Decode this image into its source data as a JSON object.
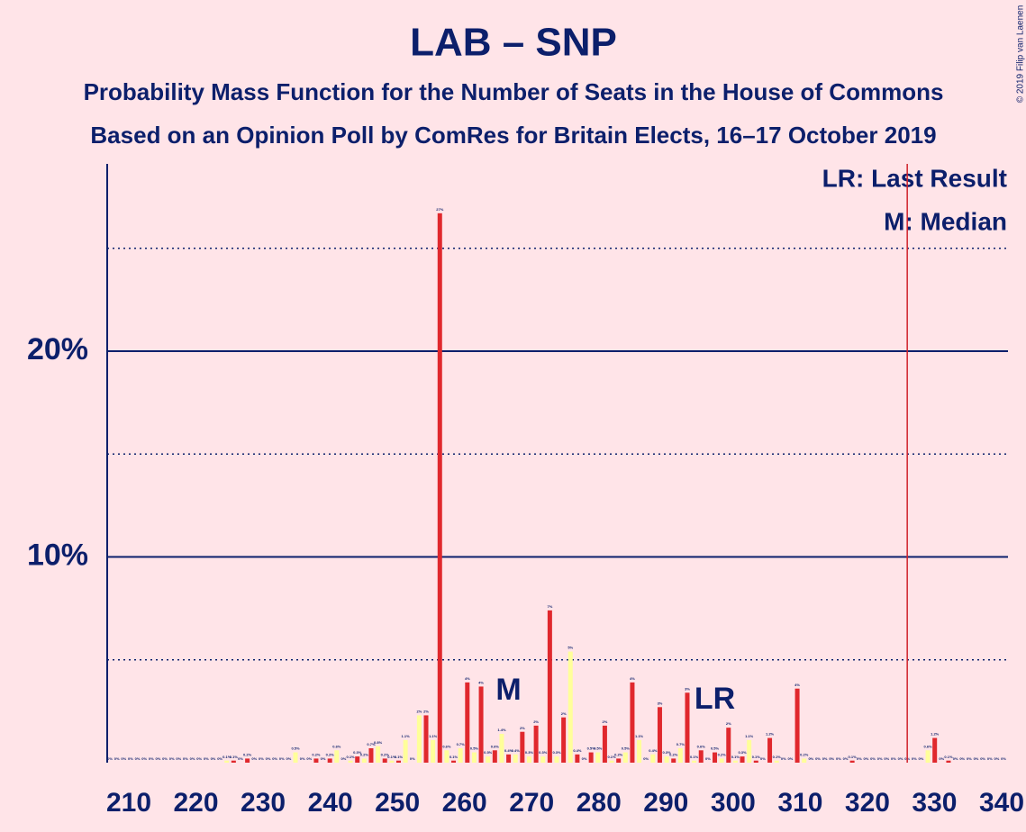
{
  "chart_data": {
    "type": "bar",
    "title": "LAB – SNP",
    "subtitle": "Probability Mass Function for the Number of Seats in the House of Commons",
    "subtitle2": "Based on an Opinion Poll by ComRes for Britain Elects, 16–17 October 2019",
    "copyright": "© 2019 Filip van Laenen",
    "legend": [
      "LR: Last Result",
      "M: Median"
    ],
    "colors": [
      "#e0282d",
      "#ffff9a"
    ],
    "x": [
      210,
      211,
      212,
      213,
      214,
      215,
      216,
      217,
      218,
      219,
      220,
      221,
      222,
      223,
      224,
      225,
      226,
      227,
      228,
      229,
      230,
      231,
      232,
      233,
      234,
      235,
      236,
      237,
      238,
      239,
      240,
      241,
      242,
      243,
      244,
      245,
      246,
      247,
      248,
      249,
      250,
      251,
      252,
      253,
      254,
      255,
      256,
      257,
      258,
      259,
      260,
      261,
      262,
      263,
      264,
      265,
      266,
      267,
      268,
      269,
      270,
      271,
      272,
      273,
      274,
      275,
      276,
      277,
      278,
      279,
      280,
      281,
      282,
      283,
      284,
      285,
      286,
      287,
      288,
      289,
      290,
      291,
      292,
      293,
      294,
      295,
      296,
      297,
      298,
      299,
      300,
      301,
      302,
      303,
      304,
      305,
      306,
      307,
      308,
      309,
      310,
      311,
      312,
      313,
      314,
      315,
      316,
      317,
      318,
      319,
      320,
      321,
      322,
      323,
      324,
      325,
      326,
      327,
      328,
      329,
      330,
      331,
      332,
      333,
      334,
      335,
      336,
      337,
      338,
      339,
      340
    ],
    "values": [
      0,
      0,
      0,
      0,
      0,
      0,
      0,
      0,
      0,
      0,
      0,
      0,
      0,
      0,
      0,
      0,
      0,
      0.1,
      0.1,
      0,
      0.2,
      0,
      0,
      0,
      0,
      0,
      0,
      0.5,
      0,
      0,
      0.2,
      0,
      0.2,
      0.6,
      0,
      0.1,
      0.3,
      0.2,
      0.7,
      0.8,
      0.2,
      0.1,
      0.1,
      1.1,
      0,
      2.3,
      2.3,
      1.1,
      26.7,
      0.6,
      0.1,
      0.7,
      3.9,
      0.5,
      3.7,
      0.3,
      0.6,
      1.4,
      0.4,
      0.4,
      1.5,
      0.3,
      1.8,
      0.3,
      7.4,
      0.3,
      2.2,
      5.4,
      0.4,
      0,
      0.5,
      0.5,
      1.8,
      0.1,
      0.2,
      0.5,
      3.9,
      1.1,
      0,
      0.4,
      2.7,
      0.3,
      0.2,
      0.7,
      3.4,
      0.1,
      0.6,
      0,
      0.5,
      0.2,
      1.7,
      0.1,
      0.3,
      1.1,
      0.1,
      0,
      1.2,
      0.1,
      0,
      0,
      3.6,
      0.2,
      0,
      0,
      0,
      0,
      0,
      0,
      0.1,
      0,
      0,
      0,
      0,
      0,
      0,
      0,
      0,
      0,
      0,
      0.6,
      1.2,
      0,
      0.1,
      0,
      0,
      0,
      0,
      0,
      0,
      0,
      0
    ],
    "value_labels": [
      "0%",
      "0%",
      "0%",
      "0%",
      "0%",
      "0%",
      "0%",
      "0%",
      "0%",
      "0%",
      "0%",
      "0%",
      "0%",
      "0%",
      "0%",
      "0%",
      "0%",
      "0.1%",
      "0.1%",
      "0%",
      "0.2%",
      "0%",
      "0%",
      "0%",
      "0%",
      "0%",
      "0%",
      "0.5%",
      "0%",
      "0%",
      "0.2%",
      "0%",
      "0.2%",
      "0.6%",
      "0%",
      "0.1%",
      "0.3%",
      "0.2%",
      "0.7%",
      "0.8%",
      "0.2%",
      "0.1%",
      "0.1%",
      "1.1%",
      "0%",
      "2%",
      "2%",
      "1.1%",
      "27%",
      "0.6%",
      "0.1%",
      "0.7%",
      "4%",
      "0.5%",
      "4%",
      "0.3%",
      "0.6%",
      "1.4%",
      "0.4%",
      "0.4%",
      "2%",
      "0.3%",
      "2%",
      "0.3%",
      "7%",
      "0.3%",
      "2%",
      "5%",
      "0.4%",
      "0%",
      "0.5%",
      "0.5%",
      "2%",
      "0.1%",
      "0.2%",
      "0.5%",
      "4%",
      "1.1%",
      "0%",
      "0.4%",
      "3%",
      "0.3%",
      "0.2%",
      "0.7%",
      "3%",
      "0.1%",
      "0.6%",
      "0%",
      "0.5%",
      "0.2%",
      "2%",
      "0.1%",
      "0.3%",
      "1.1%",
      "0.1%",
      "0%",
      "1.2%",
      "0.1%",
      "0%",
      "0%",
      "4%",
      "0.2%",
      "0%",
      "0%",
      "0%",
      "0%",
      "0%",
      "0%",
      "0.1%",
      "0%",
      "0%",
      "0%",
      "0%",
      "0%",
      "0%",
      "0%",
      "0%",
      "0%",
      "0%",
      "0.6%",
      "1.2%",
      "0%",
      "0.1%",
      "0%",
      "0%",
      "0%",
      "0%",
      "0%",
      "0%",
      "0%",
      "0%"
    ],
    "annotations": [
      {
        "text": "M",
        "x": 268
      },
      {
        "text": "LR",
        "x": 298
      }
    ],
    "majority_line": 326,
    "majority_color": "#d0212a",
    "xlim": [
      210,
      340
    ],
    "xticks": [
      210,
      220,
      230,
      240,
      250,
      260,
      270,
      280,
      290,
      300,
      310,
      320,
      330,
      340
    ],
    "ylim": [
      0,
      29.1
    ],
    "yticks": [
      {
        "value": 10,
        "label": "10%"
      },
      {
        "value": 20,
        "label": "20%"
      }
    ],
    "minor_grid": [
      5,
      15,
      25
    ],
    "grid": true
  }
}
